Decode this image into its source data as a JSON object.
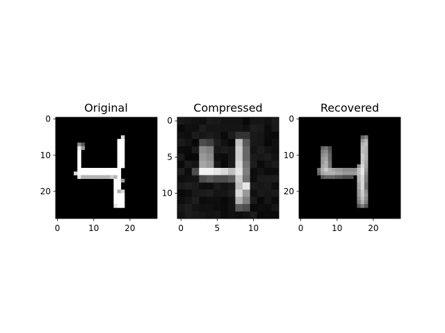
{
  "chart_data": [
    {
      "type": "heatmap",
      "title": "Original",
      "colormap": "gray",
      "grid_size": [
        28,
        28
      ],
      "xticks": [
        "0",
        "10",
        "20"
      ],
      "yticks": [
        "0",
        "10",
        "20"
      ],
      "pixels": [
        {
          "x": 6,
          "y": 7,
          "v": 0.55
        },
        {
          "x": 7,
          "y": 7,
          "v": 0.35
        },
        {
          "x": 6,
          "y": 8,
          "v": 0.9
        },
        {
          "x": 7,
          "y": 8,
          "v": 0.6
        },
        {
          "x": 6,
          "y": 9,
          "v": 1
        },
        {
          "x": 6,
          "y": 10,
          "v": 1
        },
        {
          "x": 6,
          "y": 11,
          "v": 1
        },
        {
          "x": 6,
          "y": 12,
          "v": 1
        },
        {
          "x": 6,
          "y": 13,
          "v": 1
        },
        {
          "x": 6,
          "y": 14,
          "v": 1
        },
        {
          "x": 6,
          "y": 15,
          "v": 1
        },
        {
          "x": 6,
          "y": 16,
          "v": 0.9
        },
        {
          "x": 7,
          "y": 14,
          "v": 1
        },
        {
          "x": 8,
          "y": 14,
          "v": 1
        },
        {
          "x": 9,
          "y": 14,
          "v": 1
        },
        {
          "x": 10,
          "y": 14,
          "v": 1
        },
        {
          "x": 11,
          "y": 14,
          "v": 1
        },
        {
          "x": 12,
          "y": 14,
          "v": 1
        },
        {
          "x": 13,
          "y": 14,
          "v": 1
        },
        {
          "x": 14,
          "y": 14,
          "v": 1
        },
        {
          "x": 15,
          "y": 14,
          "v": 1
        },
        {
          "x": 5,
          "y": 15,
          "v": 0.85
        },
        {
          "x": 7,
          "y": 15,
          "v": 1
        },
        {
          "x": 8,
          "y": 15,
          "v": 1
        },
        {
          "x": 9,
          "y": 15,
          "v": 1
        },
        {
          "x": 10,
          "y": 15,
          "v": 1
        },
        {
          "x": 11,
          "y": 15,
          "v": 1
        },
        {
          "x": 12,
          "y": 15,
          "v": 1
        },
        {
          "x": 13,
          "y": 15,
          "v": 1
        },
        {
          "x": 14,
          "y": 15,
          "v": 1
        },
        {
          "x": 15,
          "y": 15,
          "v": 1
        },
        {
          "x": 16,
          "y": 15,
          "v": 1
        },
        {
          "x": 7,
          "y": 16,
          "v": 0.7
        },
        {
          "x": 8,
          "y": 16,
          "v": 0.7
        },
        {
          "x": 9,
          "y": 16,
          "v": 0.7
        },
        {
          "x": 10,
          "y": 16,
          "v": 0.7
        },
        {
          "x": 11,
          "y": 16,
          "v": 0.7
        },
        {
          "x": 12,
          "y": 16,
          "v": 0.7
        },
        {
          "x": 13,
          "y": 16,
          "v": 0.7
        },
        {
          "x": 14,
          "y": 16,
          "v": 0.7
        },
        {
          "x": 15,
          "y": 16,
          "v": 0.8
        },
        {
          "x": 16,
          "y": 16,
          "v": 0.7
        },
        {
          "x": 18,
          "y": 5,
          "v": 0.85
        },
        {
          "x": 17,
          "y": 6,
          "v": 1
        },
        {
          "x": 18,
          "y": 6,
          "v": 1
        },
        {
          "x": 17,
          "y": 7,
          "v": 1
        },
        {
          "x": 18,
          "y": 7,
          "v": 1
        },
        {
          "x": 17,
          "y": 8,
          "v": 1
        },
        {
          "x": 18,
          "y": 8,
          "v": 1
        },
        {
          "x": 17,
          "y": 9,
          "v": 1
        },
        {
          "x": 18,
          "y": 9,
          "v": 1
        },
        {
          "x": 17,
          "y": 10,
          "v": 1
        },
        {
          "x": 18,
          "y": 10,
          "v": 1
        },
        {
          "x": 17,
          "y": 11,
          "v": 1
        },
        {
          "x": 18,
          "y": 11,
          "v": 1
        },
        {
          "x": 17,
          "y": 12,
          "v": 1
        },
        {
          "x": 18,
          "y": 12,
          "v": 1
        },
        {
          "x": 17,
          "y": 13,
          "v": 1
        },
        {
          "x": 18,
          "y": 13,
          "v": 1
        },
        {
          "x": 16,
          "y": 14,
          "v": 1
        },
        {
          "x": 17,
          "y": 14,
          "v": 1
        },
        {
          "x": 17,
          "y": 15,
          "v": 1
        },
        {
          "x": 17,
          "y": 16,
          "v": 1
        },
        {
          "x": 16,
          "y": 17,
          "v": 1
        },
        {
          "x": 17,
          "y": 17,
          "v": 1
        },
        {
          "x": 18,
          "y": 17,
          "v": 0.6
        },
        {
          "x": 16,
          "y": 18,
          "v": 1
        },
        {
          "x": 17,
          "y": 18,
          "v": 1
        },
        {
          "x": 16,
          "y": 19,
          "v": 1
        },
        {
          "x": 17,
          "y": 19,
          "v": 1
        },
        {
          "x": 16,
          "y": 20,
          "v": 1
        },
        {
          "x": 17,
          "y": 20,
          "v": 0.7
        },
        {
          "x": 18,
          "y": 20,
          "v": 0.85
        },
        {
          "x": 16,
          "y": 21,
          "v": 1
        },
        {
          "x": 17,
          "y": 21,
          "v": 1
        },
        {
          "x": 18,
          "y": 21,
          "v": 1
        },
        {
          "x": 16,
          "y": 22,
          "v": 1
        },
        {
          "x": 17,
          "y": 22,
          "v": 1
        },
        {
          "x": 18,
          "y": 22,
          "v": 1
        },
        {
          "x": 16,
          "y": 23,
          "v": 1
        },
        {
          "x": 17,
          "y": 23,
          "v": 1
        },
        {
          "x": 18,
          "y": 23,
          "v": 1
        },
        {
          "x": 16,
          "y": 24,
          "v": 0.9
        },
        {
          "x": 17,
          "y": 24,
          "v": 1
        },
        {
          "x": 18,
          "y": 24,
          "v": 1
        }
      ]
    },
    {
      "type": "heatmap",
      "title": "Compressed",
      "colormap": "gray",
      "grid_size": [
        14,
        14
      ],
      "xticks": [
        "0",
        "5",
        "10"
      ],
      "yticks": [
        "0",
        "5",
        "10"
      ],
      "background_noise": [
        0.03,
        0.12
      ],
      "pixels": [
        {
          "x": 3,
          "y": 3,
          "v": 0.3
        },
        {
          "x": 4,
          "y": 3,
          "v": 0.25
        },
        {
          "x": 3,
          "y": 4,
          "v": 0.55
        },
        {
          "x": 4,
          "y": 4,
          "v": 0.5
        },
        {
          "x": 3,
          "y": 5,
          "v": 0.6
        },
        {
          "x": 4,
          "y": 5,
          "v": 0.55
        },
        {
          "x": 3,
          "y": 6,
          "v": 0.65
        },
        {
          "x": 4,
          "y": 6,
          "v": 0.6
        },
        {
          "x": 2,
          "y": 7,
          "v": 0.3
        },
        {
          "x": 3,
          "y": 7,
          "v": 0.95
        },
        {
          "x": 4,
          "y": 7,
          "v": 0.95
        },
        {
          "x": 5,
          "y": 7,
          "v": 0.9
        },
        {
          "x": 6,
          "y": 7,
          "v": 0.85
        },
        {
          "x": 7,
          "y": 7,
          "v": 0.75
        },
        {
          "x": 3,
          "y": 8,
          "v": 0.3
        },
        {
          "x": 4,
          "y": 8,
          "v": 0.35
        },
        {
          "x": 5,
          "y": 8,
          "v": 0.3
        },
        {
          "x": 6,
          "y": 8,
          "v": 0.3
        },
        {
          "x": 7,
          "y": 8,
          "v": 0.35
        },
        {
          "x": 8,
          "y": 2,
          "v": 0.2
        },
        {
          "x": 9,
          "y": 2,
          "v": 0.2
        },
        {
          "x": 8,
          "y": 3,
          "v": 0.75
        },
        {
          "x": 9,
          "y": 3,
          "v": 0.35
        },
        {
          "x": 8,
          "y": 4,
          "v": 0.8
        },
        {
          "x": 9,
          "y": 4,
          "v": 0.4
        },
        {
          "x": 8,
          "y": 5,
          "v": 0.8
        },
        {
          "x": 9,
          "y": 5,
          "v": 0.4
        },
        {
          "x": 8,
          "y": 6,
          "v": 0.85
        },
        {
          "x": 9,
          "y": 6,
          "v": 0.45
        },
        {
          "x": 8,
          "y": 7,
          "v": 0.9
        },
        {
          "x": 9,
          "y": 7,
          "v": 0.5
        },
        {
          "x": 8,
          "y": 8,
          "v": 0.8
        },
        {
          "x": 9,
          "y": 8,
          "v": 0.45
        },
        {
          "x": 8,
          "y": 9,
          "v": 0.75
        },
        {
          "x": 9,
          "y": 9,
          "v": 0.9
        },
        {
          "x": 8,
          "y": 10,
          "v": 0.85
        },
        {
          "x": 9,
          "y": 10,
          "v": 0.6
        },
        {
          "x": 8,
          "y": 11,
          "v": 0.7
        },
        {
          "x": 9,
          "y": 11,
          "v": 0.5
        },
        {
          "x": 8,
          "y": 12,
          "v": 0.35
        },
        {
          "x": 9,
          "y": 12,
          "v": 0.3
        }
      ]
    },
    {
      "type": "heatmap",
      "title": "Recovered",
      "colormap": "gray",
      "grid_size": [
        28,
        28
      ],
      "xticks": [
        "0",
        "10",
        "20"
      ],
      "yticks": [
        "0",
        "10",
        "20"
      ],
      "pixels": [
        {
          "x": 6,
          "y": 8,
          "v": 0.4
        },
        {
          "x": 7,
          "y": 8,
          "v": 0.45
        },
        {
          "x": 8,
          "y": 8,
          "v": 0.3
        },
        {
          "x": 6,
          "y": 9,
          "v": 0.5
        },
        {
          "x": 7,
          "y": 9,
          "v": 0.55
        },
        {
          "x": 8,
          "y": 9,
          "v": 0.35
        },
        {
          "x": 6,
          "y": 10,
          "v": 0.55
        },
        {
          "x": 7,
          "y": 10,
          "v": 0.6
        },
        {
          "x": 8,
          "y": 10,
          "v": 0.4
        },
        {
          "x": 6,
          "y": 11,
          "v": 0.6
        },
        {
          "x": 7,
          "y": 11,
          "v": 0.65
        },
        {
          "x": 8,
          "y": 11,
          "v": 0.4
        },
        {
          "x": 6,
          "y": 12,
          "v": 0.6
        },
        {
          "x": 7,
          "y": 12,
          "v": 0.7
        },
        {
          "x": 8,
          "y": 12,
          "v": 0.45
        },
        {
          "x": 6,
          "y": 13,
          "v": 0.65
        },
        {
          "x": 7,
          "y": 13,
          "v": 0.7
        },
        {
          "x": 8,
          "y": 13,
          "v": 0.45
        },
        {
          "x": 5,
          "y": 14,
          "v": 0.45
        },
        {
          "x": 6,
          "y": 14,
          "v": 0.7
        },
        {
          "x": 7,
          "y": 14,
          "v": 0.8
        },
        {
          "x": 8,
          "y": 14,
          "v": 0.7
        },
        {
          "x": 9,
          "y": 14,
          "v": 0.65
        },
        {
          "x": 10,
          "y": 14,
          "v": 0.6
        },
        {
          "x": 11,
          "y": 14,
          "v": 0.6
        },
        {
          "x": 12,
          "y": 14,
          "v": 0.55
        },
        {
          "x": 13,
          "y": 14,
          "v": 0.55
        },
        {
          "x": 14,
          "y": 14,
          "v": 0.55
        },
        {
          "x": 15,
          "y": 14,
          "v": 0.55
        },
        {
          "x": 5,
          "y": 15,
          "v": 0.4
        },
        {
          "x": 6,
          "y": 15,
          "v": 0.65
        },
        {
          "x": 7,
          "y": 15,
          "v": 0.7
        },
        {
          "x": 8,
          "y": 15,
          "v": 0.7
        },
        {
          "x": 9,
          "y": 15,
          "v": 0.7
        },
        {
          "x": 10,
          "y": 15,
          "v": 0.65
        },
        {
          "x": 11,
          "y": 15,
          "v": 0.65
        },
        {
          "x": 12,
          "y": 15,
          "v": 0.6
        },
        {
          "x": 13,
          "y": 15,
          "v": 0.6
        },
        {
          "x": 14,
          "y": 15,
          "v": 0.6
        },
        {
          "x": 15,
          "y": 15,
          "v": 0.6
        },
        {
          "x": 6,
          "y": 16,
          "v": 0.35
        },
        {
          "x": 7,
          "y": 16,
          "v": 0.4
        },
        {
          "x": 8,
          "y": 16,
          "v": 0.4
        },
        {
          "x": 9,
          "y": 16,
          "v": 0.4
        },
        {
          "x": 10,
          "y": 16,
          "v": 0.35
        },
        {
          "x": 11,
          "y": 16,
          "v": 0.35
        },
        {
          "x": 12,
          "y": 16,
          "v": 0.3
        },
        {
          "x": 13,
          "y": 16,
          "v": 0.3
        },
        {
          "x": 14,
          "y": 16,
          "v": 0.3
        },
        {
          "x": 17,
          "y": 5,
          "v": 0.4
        },
        {
          "x": 18,
          "y": 5,
          "v": 0.5
        },
        {
          "x": 17,
          "y": 6,
          "v": 0.6
        },
        {
          "x": 18,
          "y": 6,
          "v": 0.7
        },
        {
          "x": 17,
          "y": 7,
          "v": 0.7
        },
        {
          "x": 18,
          "y": 7,
          "v": 0.75
        },
        {
          "x": 17,
          "y": 8,
          "v": 0.75
        },
        {
          "x": 18,
          "y": 8,
          "v": 0.7
        },
        {
          "x": 17,
          "y": 9,
          "v": 0.75
        },
        {
          "x": 18,
          "y": 9,
          "v": 0.7
        },
        {
          "x": 17,
          "y": 10,
          "v": 0.8
        },
        {
          "x": 18,
          "y": 10,
          "v": 0.7
        },
        {
          "x": 17,
          "y": 11,
          "v": 0.8
        },
        {
          "x": 18,
          "y": 11,
          "v": 0.7
        },
        {
          "x": 17,
          "y": 12,
          "v": 0.8
        },
        {
          "x": 18,
          "y": 12,
          "v": 0.65
        },
        {
          "x": 16,
          "y": 13,
          "v": 0.55
        },
        {
          "x": 17,
          "y": 13,
          "v": 0.85
        },
        {
          "x": 18,
          "y": 13,
          "v": 0.65
        },
        {
          "x": 16,
          "y": 14,
          "v": 0.75
        },
        {
          "x": 17,
          "y": 14,
          "v": 0.9
        },
        {
          "x": 18,
          "y": 14,
          "v": 0.6
        },
        {
          "x": 16,
          "y": 15,
          "v": 0.75
        },
        {
          "x": 17,
          "y": 15,
          "v": 0.9
        },
        {
          "x": 18,
          "y": 15,
          "v": 0.55
        },
        {
          "x": 16,
          "y": 16,
          "v": 0.7
        },
        {
          "x": 17,
          "y": 16,
          "v": 0.85
        },
        {
          "x": 18,
          "y": 16,
          "v": 0.5
        },
        {
          "x": 16,
          "y": 17,
          "v": 0.7
        },
        {
          "x": 17,
          "y": 17,
          "v": 0.85
        },
        {
          "x": 18,
          "y": 17,
          "v": 0.5
        },
        {
          "x": 16,
          "y": 18,
          "v": 0.65
        },
        {
          "x": 17,
          "y": 18,
          "v": 0.85
        },
        {
          "x": 18,
          "y": 18,
          "v": 0.45
        },
        {
          "x": 16,
          "y": 19,
          "v": 0.65
        },
        {
          "x": 17,
          "y": 19,
          "v": 0.85
        },
        {
          "x": 18,
          "y": 19,
          "v": 0.45
        },
        {
          "x": 16,
          "y": 20,
          "v": 0.6
        },
        {
          "x": 17,
          "y": 20,
          "v": 0.8
        },
        {
          "x": 18,
          "y": 20,
          "v": 0.55
        },
        {
          "x": 16,
          "y": 21,
          "v": 0.6
        },
        {
          "x": 17,
          "y": 21,
          "v": 0.8
        },
        {
          "x": 18,
          "y": 21,
          "v": 0.6
        },
        {
          "x": 16,
          "y": 22,
          "v": 0.55
        },
        {
          "x": 17,
          "y": 22,
          "v": 0.75
        },
        {
          "x": 18,
          "y": 22,
          "v": 0.55
        },
        {
          "x": 16,
          "y": 23,
          "v": 0.5
        },
        {
          "x": 17,
          "y": 23,
          "v": 0.7
        },
        {
          "x": 18,
          "y": 23,
          "v": 0.5
        },
        {
          "x": 16,
          "y": 24,
          "v": 0.35
        },
        {
          "x": 17,
          "y": 24,
          "v": 0.5
        },
        {
          "x": 18,
          "y": 24,
          "v": 0.35
        }
      ]
    }
  ]
}
